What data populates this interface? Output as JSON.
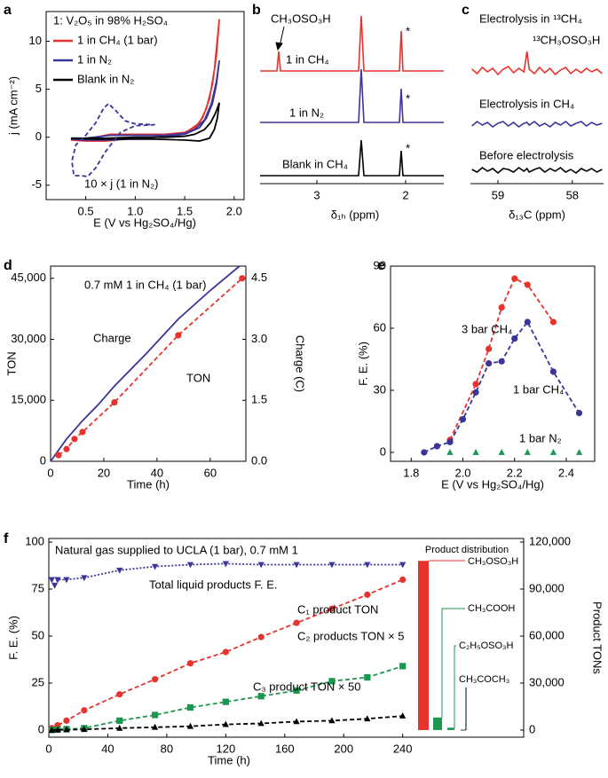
{
  "chart_data": [
    {
      "type": "line",
      "label": "a",
      "title": "1: V₂O₅ in 98% H₂SO₄",
      "xlabel": "E (V vs Hg₂SO₄/Hg)",
      "ylabel": "j (mA cm⁻²)",
      "xlim": [
        0.1,
        2.1
      ],
      "ylim": [
        -6.5,
        13.1
      ],
      "xticks": [
        0.5,
        {
          "value": 1,
          "label": "1.0"
        },
        1.5,
        {
          "value": 2,
          "label": "2.0"
        }
      ],
      "yticks": [
        -5,
        0,
        5,
        10
      ],
      "legend": "upper left",
      "series": [
        {
          "name": "1 in CH₄ (1 bar)",
          "color": "#e8322e",
          "style": "solid",
          "x": [
            0.35,
            0.5,
            0.75,
            1.0,
            1.3,
            1.5,
            1.6,
            1.68,
            1.75,
            1.8,
            1.85,
            1.82,
            1.78,
            1.72,
            1.65,
            1.5,
            1.2,
            0.9,
            0.7,
            0.5,
            0.35
          ],
          "values": [
            -0.3,
            -0.2,
            0.3,
            0.3,
            0.3,
            0.5,
            1.0,
            2.0,
            4.0,
            7.0,
            12.3,
            8.5,
            5.5,
            3.0,
            1.5,
            0.4,
            0.0,
            -0.2,
            -0.4,
            -0.4,
            -0.3
          ]
        },
        {
          "name": "1 in N₂",
          "color": "#3b3499",
          "style": "solid",
          "x": [
            0.35,
            0.5,
            0.75,
            1.0,
            1.3,
            1.5,
            1.6,
            1.7,
            1.77,
            1.82,
            1.85,
            1.82,
            1.78,
            1.72,
            1.65,
            1.5,
            1.2,
            0.9,
            0.7,
            0.5,
            0.35
          ],
          "values": [
            -0.2,
            -0.1,
            0.2,
            0.2,
            0.2,
            0.4,
            0.8,
            1.8,
            3.5,
            5.8,
            8.0,
            5.5,
            3.5,
            2.0,
            1.0,
            0.3,
            0,
            -0.2,
            -0.3,
            -0.3,
            -0.2
          ]
        },
        {
          "name": "Blank in N₂",
          "color": "#000000",
          "style": "solid",
          "x": [
            0.35,
            0.7,
            1.0,
            1.3,
            1.5,
            1.6,
            1.7,
            1.76,
            1.81,
            1.85,
            1.83,
            1.8,
            1.75,
            1.65,
            1.5,
            1.2,
            0.9,
            0.6,
            0.35
          ],
          "values": [
            -0.1,
            -0.1,
            0,
            0,
            0.1,
            0.3,
            0.8,
            1.5,
            2.5,
            3.6,
            2.0,
            0.8,
            -0.1,
            -0.4,
            -0.3,
            -0.2,
            -0.2,
            -0.2,
            -0.1
          ]
        },
        {
          "name": "10 × j (1 in N₂)",
          "color": "#3b3499",
          "style": "dashed",
          "x": [
            1.2,
            1.0,
            0.85,
            0.7,
            0.6,
            0.52,
            0.45,
            0.38,
            0.36,
            0.4,
            0.5,
            0.6,
            0.68,
            0.73,
            0.8,
            0.9,
            1.0,
            1.2
          ],
          "values": [
            1.3,
            1.2,
            0.5,
            -1.5,
            -3.2,
            -4.1,
            -4.0,
            -4.0,
            -2.5,
            -0.8,
            0.2,
            1.5,
            3.0,
            3.5,
            2.8,
            1.7,
            1.4,
            1.3
          ]
        }
      ]
    },
    {
      "type": "spectrum",
      "label": "b",
      "xlabel": "δ₁ₕ (ppm)",
      "xlim": [
        3.64,
        1.57
      ],
      "xticks": [
        3,
        2
      ],
      "annotations": [
        "CH₃OSO₃H",
        "*",
        "*",
        "*"
      ],
      "series": [
        {
          "name": "1 in CH₄",
          "color": "#e8322e",
          "x": [
            3.64,
            3.45,
            3.43,
            3.41,
            2.53,
            2.5,
            2.47,
            2.07,
            2.05,
            2.03,
            1.57
          ],
          "values": [
            0,
            0,
            22,
            0,
            0,
            62,
            0,
            0,
            45,
            0,
            0
          ]
        },
        {
          "name": "1 in N₂",
          "color": "#3b3499",
          "x": [
            3.64,
            2.53,
            2.5,
            2.47,
            2.07,
            2.05,
            2.03,
            1.57
          ],
          "values": [
            0,
            0,
            60,
            0,
            0,
            38,
            0,
            0
          ]
        },
        {
          "name": "Blank in CH₄",
          "color": "#000000",
          "x": [
            3.64,
            2.53,
            2.5,
            2.47,
            2.07,
            2.05,
            2.03,
            1.57
          ],
          "values": [
            0,
            0,
            40,
            0,
            0,
            28,
            0,
            0
          ]
        }
      ]
    },
    {
      "type": "spectrum",
      "label": "c",
      "xlabel": "δ₁₃C (ppm)",
      "xlim": [
        59.37,
        57.58
      ],
      "xticks": [
        59,
        58
      ],
      "annotations": [
        "¹³CH₃OSO₃H"
      ],
      "x": [
        59.35,
        59.28,
        59.21,
        59.14,
        59.07,
        59.0,
        58.93,
        58.86,
        58.79,
        58.72,
        58.65,
        58.61,
        58.58,
        58.51,
        58.44,
        58.37,
        58.3,
        58.23,
        58.16,
        58.09,
        58.02,
        57.95,
        57.88,
        57.81,
        57.74,
        57.67,
        57.6
      ],
      "series": [
        {
          "name": "Electrolysis in ¹³CH₄",
          "color": "#e8322e",
          "values": [
            2,
            -3,
            4,
            -1,
            3,
            -4,
            2,
            5,
            -2,
            3,
            -1,
            22,
            2,
            -3,
            4,
            -2,
            3,
            -4,
            1,
            4,
            -3,
            2,
            -2,
            3,
            -1,
            2,
            -3
          ]
        },
        {
          "name": "Electrolysis in CH₄",
          "color": "#3b3499",
          "values": [
            -2,
            3,
            -1,
            2,
            -3,
            1,
            3,
            -2,
            2,
            -3,
            1,
            2,
            -1,
            3,
            -2,
            1,
            -3,
            2,
            -1,
            3,
            -2,
            1,
            3,
            -2,
            2,
            -1,
            1
          ]
        },
        {
          "name": "Before electrolysis",
          "color": "#000000",
          "values": [
            1,
            -2,
            3,
            -1,
            2,
            -3,
            2,
            1,
            -2,
            3,
            -1,
            2,
            -2,
            1,
            3,
            -2,
            2,
            -1,
            3,
            -2,
            1,
            -3,
            2,
            -1,
            2,
            -2,
            1
          ]
        }
      ]
    },
    {
      "type": "line",
      "label": "d",
      "title": "0.7 mM 1 in CH₄ (1 bar)",
      "xlabel": "Time (h)",
      "ylabel": "TON",
      "y2label": "Charge (C)",
      "xlim": [
        0,
        73.4
      ],
      "ylim": [
        0,
        48000
      ],
      "y2lim": [
        0,
        4.8
      ],
      "xticks": [
        0,
        20,
        40,
        60
      ],
      "yticks": [
        0,
        {
          "value": 15000,
          "label": "15,000"
        },
        {
          "value": 30000,
          "label": "30,000"
        },
        {
          "value": 45000,
          "label": "45,000"
        }
      ],
      "y2ticks": [
        {
          "value": 0,
          "label": "0.0"
        },
        1.5,
        {
          "value": 3,
          "label": "3.0"
        },
        4.5
      ],
      "series": [
        {
          "name": "Charge",
          "color": "#3b3499",
          "style": "solid",
          "axis": "y2",
          "x": [
            0,
            6,
            12,
            18,
            24,
            36,
            48,
            60,
            71
          ],
          "values": [
            0,
            0.55,
            1.0,
            1.4,
            1.85,
            2.65,
            3.5,
            4.2,
            4.8
          ]
        },
        {
          "name": "TON",
          "color": "#e8322e",
          "style": "dashed",
          "marker": "circle",
          "x": [
            3,
            6,
            9,
            12,
            24,
            48,
            72
          ],
          "values": [
            1500,
            3000,
            5500,
            7200,
            14500,
            31000,
            45000
          ]
        }
      ]
    },
    {
      "type": "line",
      "label": "e",
      "xlabel": "E (V vs Hg₂SO₄/Hg)",
      "ylabel": "F. E. (%)",
      "xlim": [
        1.72,
        2.51
      ],
      "ylim": [
        -4.3,
        90
      ],
      "xticks": [
        1.8,
        {
          "value": 2,
          "label": "2.0"
        },
        2.2,
        2.4
      ],
      "yticks": [
        0,
        30,
        60,
        90
      ],
      "series": [
        {
          "name": "3 bar CH₄",
          "color": "#e8322e",
          "style": "dashed",
          "marker": "circle",
          "x": [
            1.95,
            2.05,
            2.1,
            2.15,
            2.2,
            2.25,
            2.35
          ],
          "values": [
            6,
            33,
            50,
            70,
            84,
            81,
            63
          ]
        },
        {
          "name": "1 bar CH₄",
          "color": "#3b3499",
          "style": "dashed",
          "marker": "circle",
          "x": [
            1.85,
            1.9,
            1.95,
            2.0,
            2.05,
            2.1,
            2.15,
            2.2,
            2.25,
            2.35,
            2.45
          ],
          "values": [
            0,
            3,
            5,
            16,
            29,
            43,
            44,
            55,
            63,
            39,
            19
          ]
        },
        {
          "name": "1 bar N₂",
          "color": "#1a9850",
          "style": "none",
          "marker": "triangle",
          "x": [
            1.95,
            2.05,
            2.15,
            2.25,
            2.35,
            2.45
          ],
          "values": [
            0,
            0,
            0,
            0,
            0,
            0
          ]
        }
      ]
    },
    {
      "type": "line",
      "label": "f",
      "title": "Natural gas supplied to UCLA (1 bar), 0.7 mM 1",
      "xlabel": "Time (h)",
      "ylabel": "F. E. (%)",
      "y2label": "Product TONs",
      "xlim": [
        0,
        245
      ],
      "ylim": [
        -3.8,
        101.9
      ],
      "y2lim": [
        -4560,
        122280
      ],
      "xticks": [
        0,
        40,
        80,
        120,
        160,
        200,
        240
      ],
      "yticks": [
        0,
        25,
        50,
        75,
        100
      ],
      "y2ticks": [
        0,
        {
          "value": 30000,
          "label": "30,000"
        },
        {
          "value": 60000,
          "label": "60,000"
        },
        {
          "value": 90000,
          "label": "90,000"
        },
        {
          "value": 120000,
          "label": "120,000"
        }
      ],
      "series": [
        {
          "name": "Total liquid products F. E.",
          "color": "#3b3499",
          "style": "dotted",
          "marker": "triangle-down",
          "x": [
            2,
            4,
            6,
            12,
            24,
            48,
            72,
            96,
            120,
            144,
            168,
            192,
            216,
            240
          ],
          "values": [
            80,
            77,
            80,
            80,
            81,
            85,
            87,
            88,
            88.5,
            88,
            88,
            88,
            88,
            88
          ]
        },
        {
          "name": "C₁ product TON",
          "color": "#e8322e",
          "style": "dashed",
          "marker": "circle",
          "axis": "y2",
          "x": [
            2,
            6,
            12,
            24,
            48,
            72,
            96,
            120,
            144,
            168,
            192,
            216,
            240
          ],
          "values": [
            1200,
            3000,
            6000,
            12600,
            22800,
            32400,
            42600,
            49800,
            59400,
            68400,
            77400,
            86400,
            96000
          ]
        },
        {
          "name": "C₂ products TON × 5",
          "color": "#1a9850",
          "style": "dashed",
          "marker": "square",
          "axis": "y2",
          "x": [
            2,
            6,
            12,
            24,
            48,
            72,
            96,
            120,
            144,
            168,
            192,
            216,
            240
          ],
          "values": [
            0,
            300,
            600,
            1200,
            6000,
            9600,
            14400,
            18000,
            21600,
            25200,
            31200,
            33600,
            40800
          ]
        },
        {
          "name": "C₃ product TON × 50",
          "color": "#000000",
          "style": "dashed",
          "marker": "triangle",
          "axis": "y2",
          "x": [
            2,
            6,
            12,
            24,
            48,
            72,
            96,
            120,
            144,
            168,
            192,
            216,
            240
          ],
          "values": [
            0,
            100,
            200,
            400,
            1200,
            1800,
            2400,
            3600,
            4200,
            5400,
            6000,
            7200,
            9000
          ]
        }
      ]
    },
    {
      "type": "bar",
      "title": "Product distribution",
      "ylim": [
        -4560,
        122280
      ],
      "categories": [
        "CH₃OSO₃H",
        "CH₃COOH",
        "C₂H₅OSO₃H",
        "CH₃COCH₃"
      ],
      "values": [
        108000,
        8000,
        1500,
        200
      ],
      "colors": [
        "#e8322e",
        "#1a9850",
        "#1a9850",
        "#000000"
      ]
    }
  ]
}
